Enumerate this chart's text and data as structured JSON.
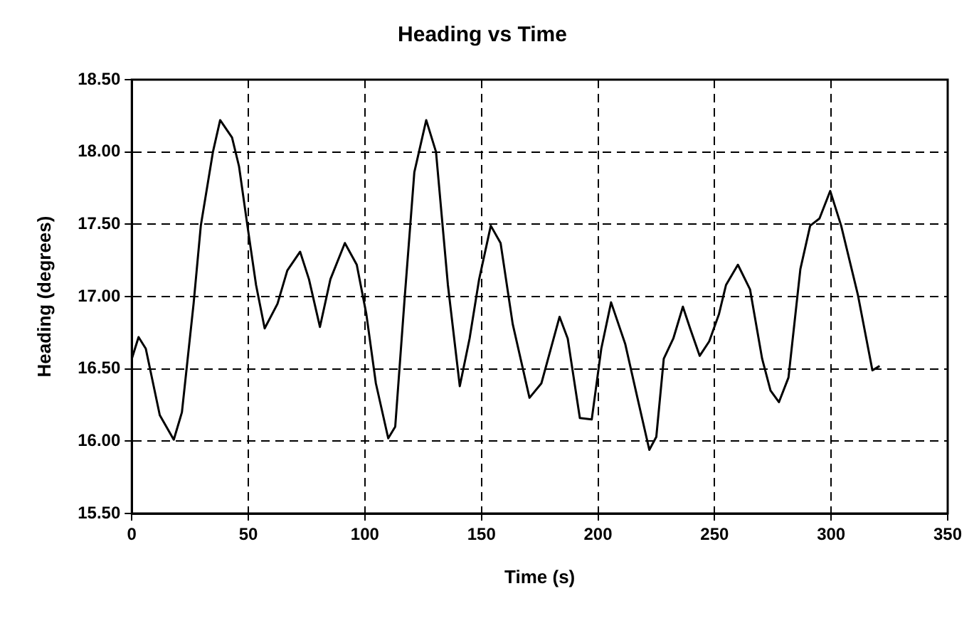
{
  "chart_data": {
    "type": "line",
    "title": "Heading vs Time",
    "xlabel": "Time (s)",
    "ylabel": "Heading (degrees)",
    "series": [
      {
        "color": "#000000",
        "x": [
          0,
          2.9,
          6,
          12,
          18,
          21.5,
          26.5,
          29.6,
          34.8,
          37.9,
          43,
          46,
          49.6,
          53.3,
          57,
          62.5,
          66.7,
          72.2,
          76,
          80.7,
          85.2,
          91.4,
          96.5,
          100.6,
          104.7,
          110,
          113,
          117,
          121.2,
          126.3,
          130.5,
          135.6,
          140.7,
          144.9,
          149,
          154,
          158.2,
          163.4,
          170.6,
          175.7,
          183.5,
          187,
          192.2,
          197.3,
          201.4,
          205.6,
          211.7,
          216.9,
          222,
          225,
          228.2,
          232.3,
          236.4,
          239.5,
          243.6,
          247.7,
          251.9,
          254.9,
          260,
          265.2,
          270.4,
          274,
          277.6,
          281.7,
          286.8,
          291,
          295,
          299.6,
          304.3,
          311.5,
          317.7,
          320.8
        ],
        "values": [
          16.57,
          16.72,
          16.64,
          16.18,
          16.01,
          16.2,
          16.95,
          17.49,
          18.0,
          18.22,
          18.1,
          17.9,
          17.49,
          17.08,
          16.78,
          16.95,
          17.18,
          17.31,
          17.12,
          16.79,
          17.12,
          17.37,
          17.22,
          16.88,
          16.4,
          16.02,
          16.1,
          16.98,
          17.86,
          18.22,
          18.0,
          17.08,
          16.38,
          16.71,
          17.12,
          17.49,
          17.37,
          16.81,
          16.3,
          16.4,
          16.86,
          16.71,
          16.16,
          16.15,
          16.64,
          16.96,
          16.67,
          16.3,
          15.94,
          16.03,
          16.57,
          16.71,
          16.93,
          16.78,
          16.59,
          16.69,
          16.88,
          17.08,
          17.22,
          17.05,
          16.57,
          16.35,
          16.27,
          16.44,
          17.19,
          17.49,
          17.54,
          17.73,
          17.49,
          17.01,
          16.49,
          16.52
        ]
      }
    ],
    "xlim": [
      0,
      350
    ],
    "xticks": [
      0,
      50,
      100,
      150,
      200,
      250,
      300,
      350
    ],
    "ylim": [
      15.5,
      18.5
    ],
    "yticks": [
      {
        "value": 15.5,
        "label": "15.50"
      },
      {
        "value": 16,
        "label": "16.00"
      },
      {
        "value": 16.5,
        "label": "16.50"
      },
      {
        "value": 17,
        "label": "17.00"
      },
      {
        "value": 17.5,
        "label": "17.50"
      },
      {
        "value": 18,
        "label": "18.00"
      },
      {
        "value": 18.5,
        "label": "18.50"
      }
    ],
    "grid": true,
    "legend": false,
    "marker": "none",
    "line_style": "solid"
  }
}
